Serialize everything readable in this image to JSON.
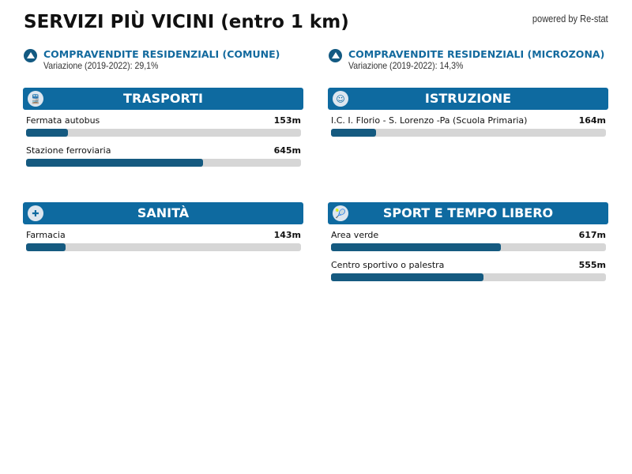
{
  "title": "SERVIZI PIÙ VICINI (entro 1 km)",
  "powered": "powered by Re-stat",
  "kpis": [
    {
      "icon": "triangle-icon",
      "title": "COMPRAVENDITE RESIDENZIALI (COMUNE)",
      "sub": "Variazione (2019-2022): 29,1%"
    },
    {
      "icon": "triangle-icon",
      "title": "COMPRAVENDITE RESIDENZIALI (MICROZONA)",
      "sub": "Variazione (2019-2022): 14,3%"
    }
  ],
  "scale_max_m": 1000,
  "colors": {
    "header": "#0e6aa0",
    "bar_fill": "#155a80",
    "bar_track": "#d6d6d6"
  },
  "sections": [
    {
      "title": "TRASPORTI",
      "icon": "train-icon",
      "items": [
        {
          "label": "Fermata autobus",
          "value": "153m",
          "dist": 153
        },
        {
          "label": "Stazione ferroviaria",
          "value": "645m",
          "dist": 645
        }
      ]
    },
    {
      "title": "ISTRUZIONE",
      "icon": "teacher-icon",
      "items": [
        {
          "label": "I.C. I. Florio - S. Lorenzo -Pa (Scuola Primaria)",
          "value": "164m",
          "dist": 164
        }
      ]
    },
    {
      "title": "SANITÀ",
      "icon": "hospital-icon",
      "items": [
        {
          "label": "Farmacia",
          "value": "143m",
          "dist": 143
        }
      ]
    },
    {
      "title": "SPORT E TEMPO LIBERO",
      "icon": "tennis-icon",
      "items": [
        {
          "label": "Area verde",
          "value": "617m",
          "dist": 617
        },
        {
          "label": "Centro sportivo o palestra",
          "value": "555m",
          "dist": 555
        }
      ]
    }
  ]
}
